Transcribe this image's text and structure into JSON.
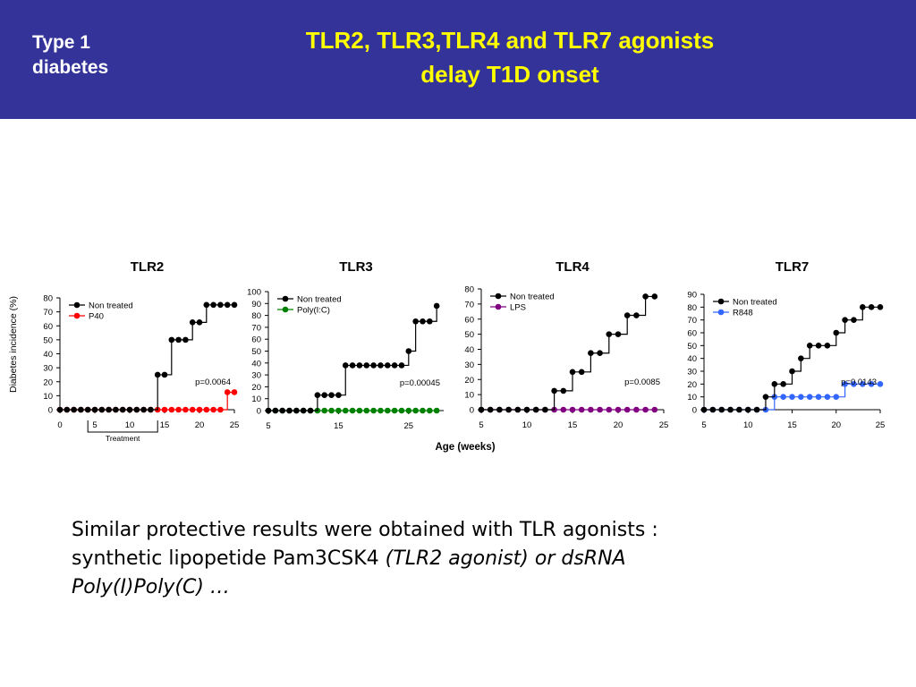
{
  "header": {
    "topic": "Type 1\ndiabetes",
    "title_line1": "TLR2, TLR3,TLR4 and TLR7 agonists",
    "title_line2": "delay T1D onset"
  },
  "shared": {
    "ylabel": "Diabetes incidence (%)",
    "xlabel": "Age (weeks)"
  },
  "chart_data": [
    {
      "type": "line",
      "title": "TLR2",
      "xlim": [
        0,
        25
      ],
      "ylim": [
        0,
        80
      ],
      "xticks": [
        0,
        5,
        10,
        15,
        20,
        25
      ],
      "yticks": [
        0,
        10,
        20,
        30,
        40,
        50,
        60,
        70,
        80
      ],
      "pvalue": "p=0.0064",
      "treatment": {
        "label": "Treatment",
        "from": 4,
        "to": 14
      },
      "series": [
        {
          "name": "Non treated",
          "color": "#000000",
          "x": [
            0,
            1,
            2,
            3,
            4,
            5,
            6,
            7,
            8,
            9,
            10,
            11,
            12,
            13,
            14,
            15,
            16,
            17,
            18,
            19,
            20,
            21,
            22,
            23,
            24,
            25
          ],
          "y": [
            0,
            0,
            0,
            0,
            0,
            0,
            0,
            0,
            0,
            0,
            0,
            0,
            0,
            0,
            25,
            25,
            50,
            50,
            50,
            62.5,
            62.5,
            75,
            75,
            75,
            75,
            75
          ]
        },
        {
          "name": "P40",
          "color": "#ff0000",
          "x": [
            0,
            1,
            2,
            3,
            4,
            5,
            6,
            7,
            8,
            9,
            10,
            11,
            12,
            13,
            14,
            15,
            16,
            17,
            18,
            19,
            20,
            21,
            22,
            23,
            24,
            25
          ],
          "y": [
            0,
            0,
            0,
            0,
            0,
            0,
            0,
            0,
            0,
            0,
            0,
            0,
            0,
            0,
            0,
            0,
            0,
            0,
            0,
            0,
            0,
            0,
            0,
            0,
            12.5,
            12.5
          ]
        }
      ]
    },
    {
      "type": "line",
      "title": "TLR3",
      "xlim": [
        5,
        30
      ],
      "ylim": [
        0,
        100
      ],
      "xticks": [
        5,
        15,
        25
      ],
      "yticks": [
        0,
        10,
        20,
        30,
        40,
        50,
        60,
        70,
        80,
        90,
        100
      ],
      "pvalue": "p=0.00045",
      "series": [
        {
          "name": "Non treated",
          "color": "#000000",
          "x": [
            5,
            6,
            7,
            8,
            9,
            10,
            11,
            12,
            13,
            14,
            15,
            16,
            17,
            18,
            19,
            20,
            21,
            22,
            23,
            24,
            25,
            26,
            27,
            28,
            29
          ],
          "y": [
            0,
            0,
            0,
            0,
            0,
            0,
            0,
            13,
            13,
            13,
            13,
            38,
            38,
            38,
            38,
            38,
            38,
            38,
            38,
            38,
            50,
            75,
            75,
            75,
            88
          ]
        },
        {
          "name": "Poly(I:C)",
          "color": "#008000",
          "x": [
            5,
            6,
            7,
            8,
            9,
            10,
            11,
            12,
            13,
            14,
            15,
            16,
            17,
            18,
            19,
            20,
            21,
            22,
            23,
            24,
            25,
            26,
            27,
            28,
            29
          ],
          "y": [
            0,
            0,
            0,
            0,
            0,
            0,
            0,
            0,
            0,
            0,
            0,
            0,
            0,
            0,
            0,
            0,
            0,
            0,
            0,
            0,
            0,
            0,
            0,
            0,
            0
          ]
        }
      ]
    },
    {
      "type": "line",
      "title": "TLR4",
      "xlim": [
        5,
        25
      ],
      "ylim": [
        0,
        80
      ],
      "xticks": [
        5,
        10,
        15,
        20,
        25
      ],
      "yticks": [
        0,
        10,
        20,
        30,
        40,
        50,
        60,
        70,
        80
      ],
      "pvalue": "p=0.0085",
      "series": [
        {
          "name": "Non treated",
          "color": "#000000",
          "x": [
            5,
            6,
            7,
            8,
            9,
            10,
            11,
            12,
            13,
            14,
            15,
            16,
            17,
            18,
            19,
            20,
            21,
            22,
            23,
            24
          ],
          "y": [
            0,
            0,
            0,
            0,
            0,
            0,
            0,
            0,
            12.5,
            12.5,
            25,
            25,
            37.5,
            37.5,
            50,
            50,
            62.5,
            62.5,
            75,
            75
          ]
        },
        {
          "name": "LPS",
          "color": "#800080",
          "x": [
            5,
            6,
            7,
            8,
            9,
            10,
            11,
            12,
            13,
            14,
            15,
            16,
            17,
            18,
            19,
            20,
            21,
            22,
            23,
            24
          ],
          "y": [
            0,
            0,
            0,
            0,
            0,
            0,
            0,
            0,
            0,
            0,
            0,
            0,
            0,
            0,
            0,
            0,
            0,
            0,
            0,
            0
          ]
        }
      ]
    },
    {
      "type": "line",
      "title": "TLR7",
      "xlim": [
        5,
        25
      ],
      "ylim": [
        0,
        90
      ],
      "xticks": [
        5,
        10,
        15,
        20,
        25
      ],
      "yticks": [
        0,
        10,
        20,
        30,
        40,
        50,
        60,
        70,
        80,
        90
      ],
      "pvalue": "p=0.0143",
      "series": [
        {
          "name": "Non treated",
          "color": "#000000",
          "x": [
            5,
            6,
            7,
            8,
            9,
            10,
            11,
            12,
            13,
            14,
            15,
            16,
            17,
            18,
            19,
            20,
            21,
            22,
            23,
            24,
            25
          ],
          "y": [
            0,
            0,
            0,
            0,
            0,
            0,
            0,
            10,
            20,
            20,
            30,
            40,
            50,
            50,
            50,
            60,
            70,
            70,
            80,
            80,
            80
          ]
        },
        {
          "name": "R848",
          "color": "#3366ff",
          "x": [
            5,
            6,
            7,
            8,
            9,
            10,
            11,
            12,
            13,
            14,
            15,
            16,
            17,
            18,
            19,
            20,
            21,
            22,
            23,
            24,
            25
          ],
          "y": [
            0,
            0,
            0,
            0,
            0,
            0,
            0,
            0,
            10,
            10,
            10,
            10,
            10,
            10,
            10,
            10,
            20,
            20,
            20,
            20,
            20
          ]
        }
      ]
    }
  ],
  "caption": {
    "line1": "Similar protective results were obtained with TLR agonists :",
    "line2_normal": "synthetic lipopetide Pam3CSK4 ",
    "line2_italic": "(TLR2 agonist) or dsRNA",
    "line3_italic": "Poly(I)Poly(C) …"
  }
}
